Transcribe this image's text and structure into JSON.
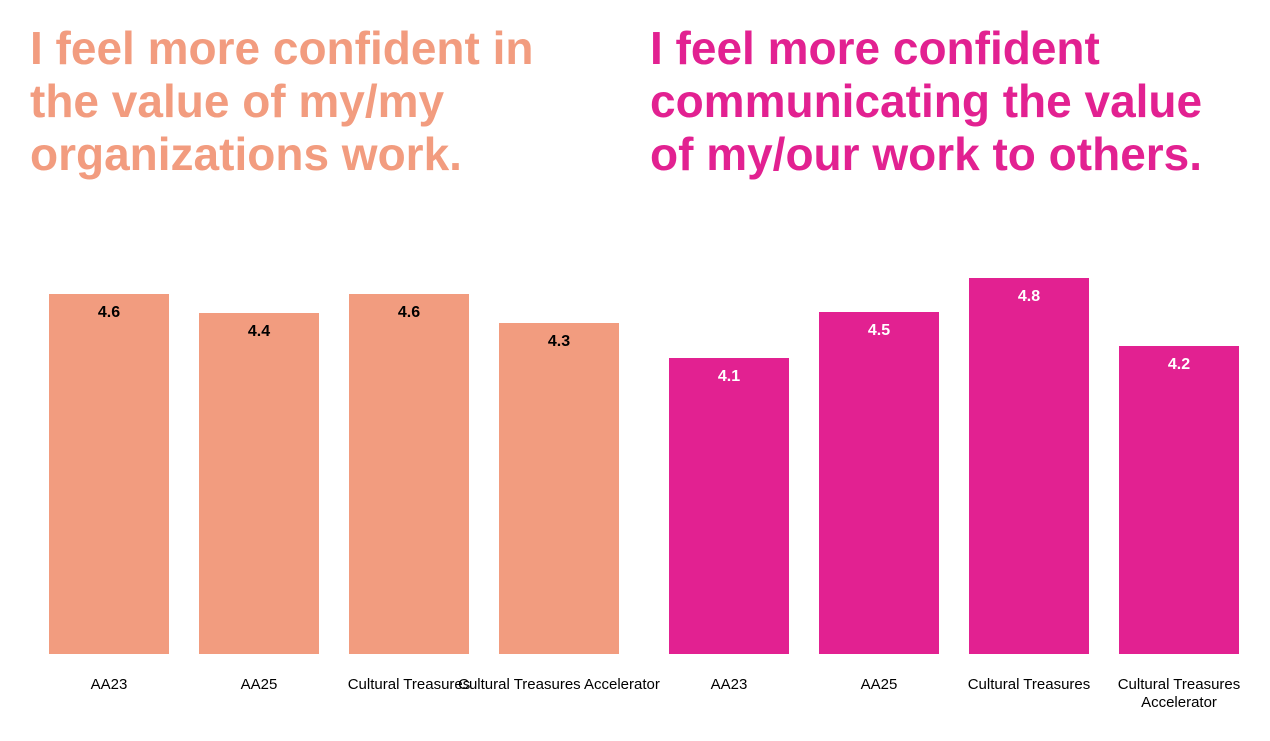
{
  "chart_data": [
    {
      "type": "bar",
      "title": "I feel more confident in the value of my/my organizations work.",
      "categories": [
        "AA23",
        "AA25",
        "Cultural Treasures",
        "Cultural Treasures Accelerator"
      ],
      "values": [
        4.6,
        4.4,
        4.6,
        4.3
      ],
      "color": "#f29c7f",
      "label_color": "#000000",
      "ylim": [
        0.9,
        5.0
      ]
    },
    {
      "type": "bar",
      "title": "I feel more confident communicating the value of my/our work to others.",
      "categories": [
        "AA23",
        "AA25",
        "Cultural Treasures",
        "Cultural Treasures Accelerator"
      ],
      "values": [
        4.1,
        4.5,
        4.8,
        4.2
      ],
      "color": "#e22191",
      "label_color": "#ffffff",
      "ylim": [
        1.5,
        5.0
      ]
    }
  ]
}
